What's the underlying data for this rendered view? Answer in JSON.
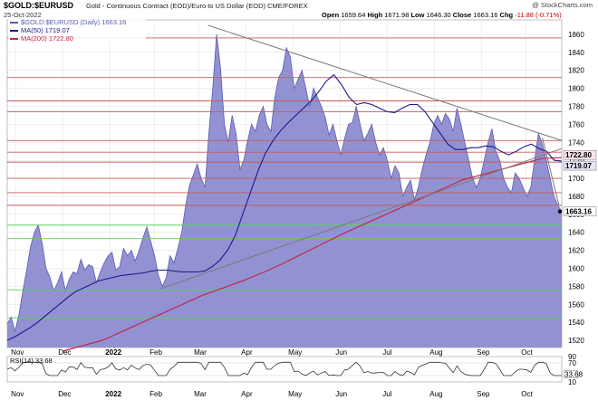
{
  "header": {
    "ticker": "$GOLD:$EURUSD",
    "description": "Gold - Continuous Contract (EOD)/Euro to US Dollar (EOD) CME/FOREX",
    "date": "25-Oct-2022",
    "credit": "@ StockCharts.com",
    "ohlc": {
      "open_label": "Open",
      "open": "1659.64",
      "high_label": "High",
      "high": "1671.98",
      "low_label": "Low",
      "low": "1646.30",
      "close_label": "Close",
      "close": "1663.16",
      "chg_label": "Chg",
      "chg": "-11.88 (-0.71%)"
    }
  },
  "legend": [
    {
      "text": "$GOLD:$EURUSD (Daily) 1663.16",
      "color": "#5a5ab4"
    },
    {
      "text": "MA(50) 1719.07",
      "color": "#1a1a8a"
    },
    {
      "text": "MA(200) 1722.80",
      "color": "#c0284a"
    }
  ],
  "rsi_legend": "RSI(14) 33.68",
  "colors": {
    "area_fill": "#8c8cd0",
    "area_line": "#5a5ab4",
    "ma50": "#1a1a8a",
    "ma200": "#c0284a",
    "resistance": "#c85a5a",
    "support": "#5ad25a",
    "trendline": "#7a7a7a",
    "grid": "#e4e4e4"
  },
  "chart_data": {
    "type": "area",
    "x_labels": [
      "Nov",
      "Dec",
      "2022",
      "Feb",
      "Mar",
      "Apr",
      "May",
      "Jun",
      "Jul",
      "Aug",
      "Sep",
      "Oct"
    ],
    "y_ticks": [
      1520,
      1540,
      1560,
      1580,
      1600,
      1620,
      1640,
      1660,
      1680,
      1700,
      1720,
      1740,
      1760,
      1780,
      1800,
      1820,
      1840,
      1860
    ],
    "ylim": [
      1512,
      1876
    ],
    "price_label": "1663.16",
    "ma50_label": "1719.07",
    "ma200_label": "1722.80",
    "resistance_levels": [
      1856,
      1812,
      1786,
      1774,
      1742,
      1729,
      1718,
      1700,
      1684,
      1670
    ],
    "support_levels": [
      1648,
      1633,
      1576,
      1545
    ],
    "series": [
      {
        "name": "$GOLD:$EURUSD (Daily)",
        "values": [
          1538,
          1546,
          1530,
          1548,
          1574,
          1598,
          1624,
          1640,
          1648,
          1628,
          1600,
          1590,
          1575,
          1584,
          1596,
          1575,
          1588,
          1596,
          1594,
          1610,
          1598,
          1604,
          1602,
          1584,
          1596,
          1606,
          1614,
          1618,
          1598,
          1602,
          1622,
          1614,
          1620,
          1608,
          1620,
          1634,
          1646,
          1630,
          1614,
          1592,
          1580,
          1590,
          1614,
          1606,
          1622,
          1640,
          1670,
          1692,
          1704,
          1716,
          1700,
          1690,
          1750,
          1800,
          1860,
          1822,
          1760,
          1740,
          1770,
          1750,
          1710,
          1720,
          1742,
          1760,
          1752,
          1770,
          1780,
          1760,
          1752,
          1790,
          1812,
          1820,
          1845,
          1835,
          1800,
          1810,
          1820,
          1800,
          1780,
          1800,
          1790,
          1780,
          1768,
          1748,
          1760,
          1742,
          1726,
          1744,
          1760,
          1762,
          1780,
          1760,
          1742,
          1750,
          1760,
          1740,
          1726,
          1734,
          1720,
          1700,
          1714,
          1706,
          1680,
          1690,
          1698,
          1676,
          1690,
          1710,
          1726,
          1740,
          1760,
          1770,
          1760,
          1772,
          1766,
          1752,
          1778,
          1760,
          1740,
          1720,
          1700,
          1690,
          1700,
          1720,
          1740,
          1755,
          1730,
          1720,
          1700,
          1690,
          1684,
          1706,
          1700,
          1690,
          1680,
          1690,
          1720,
          1750,
          1738,
          1720,
          1700,
          1680,
          1670,
          1663
        ]
      },
      {
        "name": "MA(50)",
        "values": [
          1520,
          1524,
          1529,
          1534,
          1540,
          1547,
          1554,
          1561,
          1568,
          1574,
          1578,
          1582,
          1586,
          1588,
          1590,
          1592,
          1593,
          1594,
          1595,
          1597,
          1598,
          1598,
          1597,
          1596,
          1596,
          1596,
          1597,
          1602,
          1609,
          1620,
          1636,
          1660,
          1684,
          1708,
          1728,
          1742,
          1753,
          1762,
          1770,
          1778,
          1786,
          1796,
          1808,
          1815,
          1804,
          1790,
          1782,
          1784,
          1782,
          1778,
          1774,
          1773,
          1778,
          1782,
          1782,
          1774,
          1762,
          1750,
          1738,
          1732,
          1732,
          1734,
          1734,
          1736,
          1735,
          1730,
          1726,
          1730,
          1735,
          1738,
          1733,
          1730,
          1720,
          1719
        ]
      },
      {
        "name": "MA(200)",
        "values": [
          1508,
          1514,
          1520,
          1530,
          1540,
          1550,
          1560,
          1570,
          1578,
          1586,
          1595,
          1605,
          1616,
          1627,
          1638,
          1648,
          1658,
          1668,
          1678,
          1688,
          1698,
          1704,
          1710,
          1716,
          1722,
          1723
        ]
      }
    ]
  }
}
